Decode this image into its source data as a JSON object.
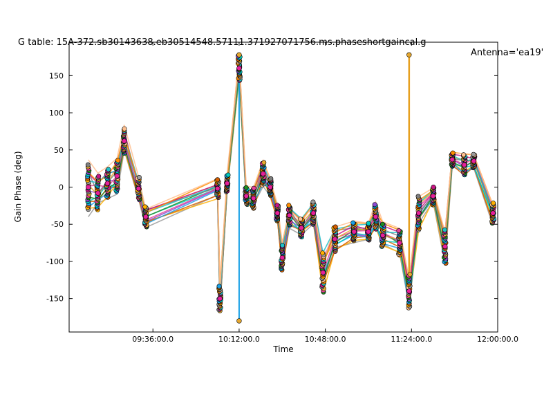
{
  "chart_data": {
    "type": "line",
    "title": "G table: 15A-372.sb30143638.eb30514548.57111.371927071756.ms.phaseshortgaincal.g",
    "title_right": "Antenna='ea19'",
    "xlabel": "Time",
    "ylabel": "Gain Phase (deg)",
    "xlim": [
      "09:01:00",
      "12:00:00"
    ],
    "ylim": [
      -195,
      195
    ],
    "x_ticks": [
      "09:36:00.0",
      "10:12:00.0",
      "10:48:00.0",
      "11:24:00.0",
      "12:00:00.0"
    ],
    "y_ticks": [
      150,
      100,
      50,
      0,
      -50,
      -100,
      -150
    ],
    "grid": false,
    "legend": "none",
    "series_colors": [
      "#9c9c9c",
      "#ffb000",
      "#d55e00",
      "#1aa1e6",
      "#00c9bf",
      "#8c4bd1",
      "#228b22",
      "#e64097",
      "#e6a830",
      "#7f7f7f",
      "#c71585",
      "#20c0c8",
      "#ff8c00",
      "#ffc090"
    ],
    "groups": [
      {
        "t": "09:09:00",
        "center": 0,
        "spread": 40
      },
      {
        "t": "09:13:00",
        "center": -8,
        "spread": 30
      },
      {
        "t": "09:17:00",
        "center": 5,
        "spread": 25
      },
      {
        "t": "09:21:00",
        "center": 15,
        "spread": 28
      },
      {
        "t": "09:24:00",
        "center": 62,
        "spread": 22
      },
      {
        "t": "09:30:00",
        "center": -2,
        "spread": 20
      },
      {
        "t": "09:33:00",
        "center": -40,
        "spread": 18
      },
      {
        "t": "10:03:00",
        "center": -2,
        "spread": 16
      },
      {
        "t": "10:04:00",
        "center": -150,
        "spread": 22
      },
      {
        "t": "10:07:00",
        "center": 5,
        "spread": 15
      },
      {
        "t": "10:12:00",
        "center": 160,
        "spread": 22
      },
      {
        "t": "10:15:00",
        "center": -12,
        "spread": 15
      },
      {
        "t": "10:18:00",
        "center": -15,
        "spread": 18
      },
      {
        "t": "10:22:00",
        "center": 18,
        "spread": 20
      },
      {
        "t": "10:25:00",
        "center": 0,
        "spread": 15
      },
      {
        "t": "10:28:00",
        "center": -35,
        "spread": 14
      },
      {
        "t": "10:30:00",
        "center": -95,
        "spread": 22
      },
      {
        "t": "10:33:00",
        "center": -38,
        "spread": 18
      },
      {
        "t": "10:38:00",
        "center": -55,
        "spread": 16
      },
      {
        "t": "10:43:00",
        "center": -35,
        "spread": 20
      },
      {
        "t": "10:47:00",
        "center": -115,
        "spread": 35
      },
      {
        "t": "10:52:00",
        "center": -70,
        "spread": 22
      },
      {
        "t": "11:00:00",
        "center": -60,
        "spread": 16
      },
      {
        "t": "11:06:00",
        "center": -60,
        "spread": 15
      },
      {
        "t": "11:09:00",
        "center": -40,
        "spread": 22
      },
      {
        "t": "11:12:00",
        "center": -65,
        "spread": 20
      },
      {
        "t": "11:19:00",
        "center": -75,
        "spread": 22
      },
      {
        "t": "11:23:00",
        "center": -140,
        "spread": 30
      },
      {
        "t": "11:27:00",
        "center": -35,
        "spread": 30
      },
      {
        "t": "11:33:00",
        "center": -12,
        "spread": 16
      },
      {
        "t": "11:38:00",
        "center": -80,
        "spread": 30
      },
      {
        "t": "11:41:00",
        "center": 37,
        "spread": 12
      },
      {
        "t": "11:46:00",
        "center": 30,
        "spread": 18
      },
      {
        "t": "11:50:00",
        "center": 35,
        "spread": 12
      },
      {
        "t": "11:58:00",
        "center": -35,
        "spread": 18
      }
    ],
    "outliers": [
      {
        "t": "11:23:00",
        "value": 178
      },
      {
        "t": "10:12:00",
        "value": 178
      },
      {
        "t": "10:12:00",
        "value": -180
      }
    ]
  }
}
